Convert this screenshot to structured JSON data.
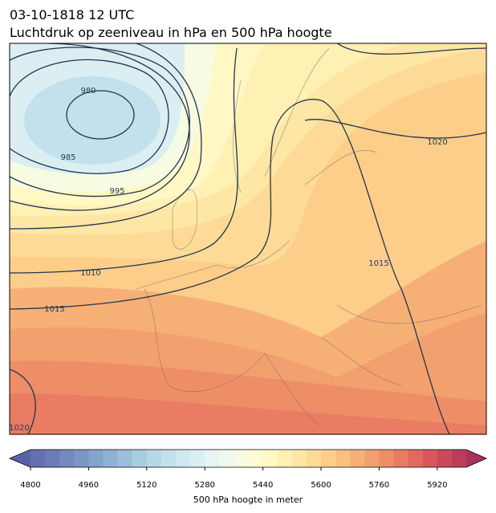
{
  "header": {
    "date": "03-10-1818 12 UTC",
    "title": "Luchtdruk op zeeniveau in hPa en 500 hPa hoogte"
  },
  "map": {
    "contour_labels": [
      980,
      985,
      995,
      1010,
      1015,
      1015,
      1020,
      1020
    ]
  },
  "colorbar": {
    "label": "500 hPa hoogte in meter",
    "lim": [
      4800,
      6000
    ],
    "ticks": [
      4800,
      4960,
      5120,
      5280,
      5440,
      5600,
      5760,
      5920
    ],
    "under_color": "#5a62a6",
    "over_color": "#a8325a",
    "colors": [
      "#6470b3",
      "#6b7cb8",
      "#7389bf",
      "#7a96c4",
      "#84a5cb",
      "#8fb2d2",
      "#9cc0d9",
      "#a8cde0",
      "#b5d8e6",
      "#c2e1ec",
      "#cfe8f0",
      "#dbeff3",
      "#e6f4f2",
      "#eff8ec",
      "#f7fbe2",
      "#fdfcd5",
      "#fff7c4",
      "#fff0b4",
      "#fee6a4",
      "#fddb96",
      "#fcce8a",
      "#f9c07f",
      "#f6b076",
      "#f2a06e",
      "#ee8e67",
      "#e97c62",
      "#e2695e",
      "#d9575c",
      "#cc485b",
      "#bd3c59"
    ]
  }
}
